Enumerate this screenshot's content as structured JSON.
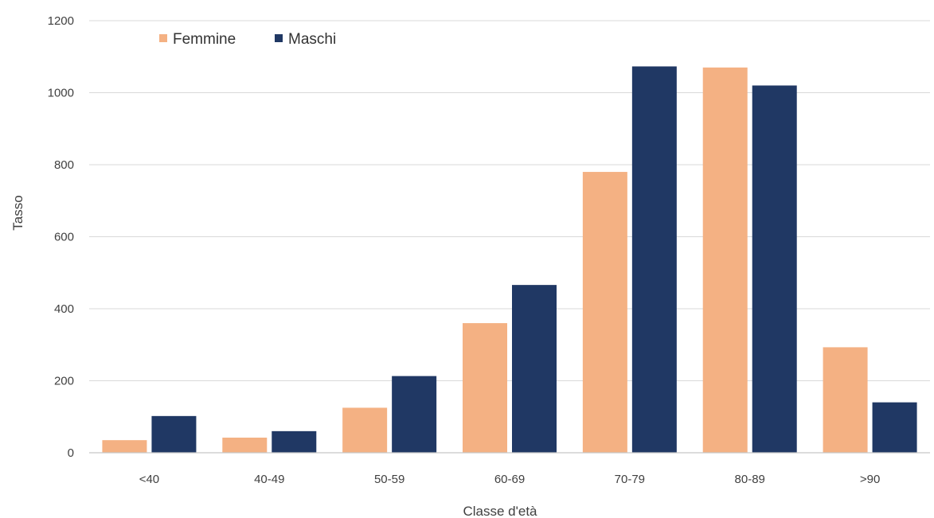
{
  "chart_data": {
    "type": "bar",
    "title": "",
    "xlabel": "Classe d'età",
    "ylabel": "Tasso",
    "categories": [
      "<40",
      "40-49",
      "50-59",
      "60-69",
      "70-79",
      "80-89",
      ">90"
    ],
    "series": [
      {
        "name": "Femmine",
        "color": "#F4B183",
        "values": [
          35,
          42,
          125,
          360,
          780,
          1070,
          293
        ]
      },
      {
        "name": "Maschi",
        "color": "#203864",
        "values": [
          102,
          60,
          213,
          466,
          1073,
          1020,
          140
        ]
      }
    ],
    "ylim": [
      0,
      1200
    ],
    "yticks": [
      0,
      200,
      400,
      600,
      800,
      1000,
      1200
    ],
    "grid": true,
    "legend_position": "top-left"
  }
}
